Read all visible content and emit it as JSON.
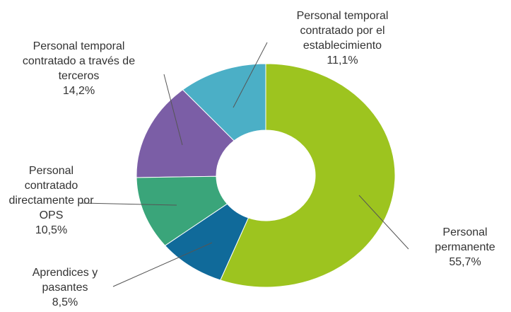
{
  "chart_data": {
    "type": "donut",
    "categories": [
      "Personal permanente",
      "Aprendices y pasantes",
      "Personal contratado directamente por OPS",
      "Personal temporal contratado a través de terceros",
      "Personal temporal contratado por el establecimiento"
    ],
    "values": [
      55.7,
      8.5,
      10.5,
      14.2,
      11.1
    ],
    "value_labels": [
      "55,7%",
      "8,5%",
      "10,5%",
      "14,2%",
      "11,1%"
    ],
    "colors": [
      "#9dc41f",
      "#106a9a",
      "#3aa57a",
      "#7b5ea6",
      "#4bafc6"
    ]
  }
}
